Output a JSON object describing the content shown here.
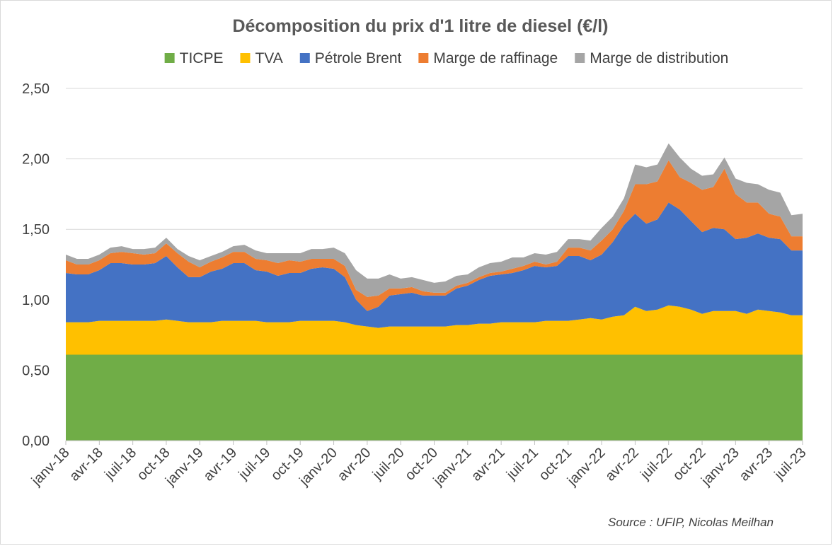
{
  "chart_data": {
    "type": "area",
    "stacked": true,
    "title": "Décomposition du prix d'1 litre de diesel (€/l)",
    "source": "Source : UFIP, Nicolas Meilhan",
    "ylim": [
      0,
      2.5
    ],
    "yticks": [
      "0,00",
      "0,50",
      "1,00",
      "1,50",
      "2,00",
      "2,50"
    ],
    "ytick_values": [
      0,
      0.5,
      1,
      1.5,
      2,
      2.5
    ],
    "grid": "horizontal",
    "legend_position": "top",
    "x_tick_labels": [
      "janv-18",
      "avr-18",
      "juil-18",
      "oct-18",
      "janv-19",
      "avr-19",
      "juil-19",
      "oct-19",
      "janv-20",
      "avr-20",
      "juil-20",
      "oct-20",
      "janv-21",
      "avr-21",
      "juil-21",
      "oct-21",
      "janv-22",
      "avr-22",
      "juil-22",
      "oct-22",
      "janv-23",
      "avr-23",
      "juil-23"
    ],
    "x_tick_index": [
      0,
      3,
      6,
      9,
      12,
      15,
      18,
      21,
      24,
      27,
      30,
      33,
      36,
      39,
      42,
      45,
      48,
      51,
      54,
      57,
      60,
      63,
      66
    ],
    "x": [
      "janv-18",
      "févr-18",
      "mars-18",
      "avr-18",
      "mai-18",
      "juin-18",
      "juil-18",
      "août-18",
      "sept-18",
      "oct-18",
      "nov-18",
      "déc-18",
      "janv-19",
      "févr-19",
      "mars-19",
      "avr-19",
      "mai-19",
      "juin-19",
      "juil-19",
      "août-19",
      "sept-19",
      "oct-19",
      "nov-19",
      "déc-19",
      "janv-20",
      "févr-20",
      "mars-20",
      "avr-20",
      "mai-20",
      "juin-20",
      "juil-20",
      "août-20",
      "sept-20",
      "oct-20",
      "nov-20",
      "déc-20",
      "janv-21",
      "févr-21",
      "mars-21",
      "avr-21",
      "mai-21",
      "juin-21",
      "juil-21",
      "août-21",
      "sept-21",
      "oct-21",
      "nov-21",
      "déc-21",
      "janv-22",
      "févr-22",
      "mars-22",
      "avr-22",
      "mai-22",
      "juin-22",
      "juil-22",
      "août-22",
      "sept-22",
      "oct-22",
      "nov-22",
      "déc-22",
      "janv-23",
      "févr-23",
      "mars-23",
      "avr-23",
      "mai-23",
      "juin-23",
      "juil-23"
    ],
    "series": [
      {
        "name": "TICPE",
        "color": "#70AD47",
        "values": [
          0.61,
          0.61,
          0.61,
          0.61,
          0.61,
          0.61,
          0.61,
          0.61,
          0.61,
          0.61,
          0.61,
          0.61,
          0.61,
          0.61,
          0.61,
          0.61,
          0.61,
          0.61,
          0.61,
          0.61,
          0.61,
          0.61,
          0.61,
          0.61,
          0.61,
          0.61,
          0.61,
          0.61,
          0.61,
          0.61,
          0.61,
          0.61,
          0.61,
          0.61,
          0.61,
          0.61,
          0.61,
          0.61,
          0.61,
          0.61,
          0.61,
          0.61,
          0.61,
          0.61,
          0.61,
          0.61,
          0.61,
          0.61,
          0.61,
          0.61,
          0.61,
          0.61,
          0.61,
          0.61,
          0.61,
          0.61,
          0.61,
          0.61,
          0.61,
          0.61,
          0.61,
          0.61,
          0.61,
          0.61,
          0.61,
          0.61,
          0.61
        ]
      },
      {
        "name": "TVA",
        "color": "#FFC000",
        "values": [
          0.23,
          0.23,
          0.23,
          0.24,
          0.24,
          0.24,
          0.24,
          0.24,
          0.24,
          0.25,
          0.24,
          0.23,
          0.23,
          0.23,
          0.24,
          0.24,
          0.24,
          0.24,
          0.23,
          0.23,
          0.23,
          0.24,
          0.24,
          0.24,
          0.24,
          0.23,
          0.21,
          0.2,
          0.19,
          0.2,
          0.2,
          0.2,
          0.2,
          0.2,
          0.2,
          0.21,
          0.21,
          0.22,
          0.22,
          0.23,
          0.23,
          0.23,
          0.23,
          0.24,
          0.24,
          0.24,
          0.25,
          0.26,
          0.25,
          0.27,
          0.28,
          0.34,
          0.31,
          0.32,
          0.35,
          0.34,
          0.32,
          0.29,
          0.31,
          0.31,
          0.31,
          0.29,
          0.32,
          0.31,
          0.3,
          0.28,
          0.28
        ]
      },
      {
        "name": "Pétrole Brent",
        "color": "#4472C4",
        "values": [
          0.35,
          0.34,
          0.34,
          0.36,
          0.41,
          0.41,
          0.4,
          0.4,
          0.41,
          0.45,
          0.38,
          0.32,
          0.32,
          0.36,
          0.37,
          0.41,
          0.41,
          0.36,
          0.36,
          0.33,
          0.35,
          0.34,
          0.37,
          0.38,
          0.37,
          0.32,
          0.18,
          0.11,
          0.15,
          0.22,
          0.23,
          0.24,
          0.22,
          0.22,
          0.22,
          0.26,
          0.28,
          0.31,
          0.34,
          0.34,
          0.35,
          0.37,
          0.4,
          0.38,
          0.39,
          0.46,
          0.45,
          0.41,
          0.46,
          0.53,
          0.64,
          0.66,
          0.62,
          0.64,
          0.73,
          0.69,
          0.63,
          0.58,
          0.59,
          0.58,
          0.51,
          0.54,
          0.54,
          0.52,
          0.52,
          0.46,
          0.46
        ]
      },
      {
        "name": "Marge de raffinage",
        "color": "#ED7D31",
        "values": [
          0.09,
          0.07,
          0.07,
          0.07,
          0.07,
          0.08,
          0.08,
          0.07,
          0.07,
          0.09,
          0.1,
          0.11,
          0.07,
          0.07,
          0.08,
          0.08,
          0.08,
          0.08,
          0.08,
          0.09,
          0.09,
          0.08,
          0.07,
          0.06,
          0.07,
          0.08,
          0.07,
          0.1,
          0.08,
          0.05,
          0.04,
          0.04,
          0.03,
          0.02,
          0.02,
          0.02,
          0.02,
          0.02,
          0.02,
          0.02,
          0.03,
          0.03,
          0.03,
          0.02,
          0.03,
          0.06,
          0.06,
          0.07,
          0.1,
          0.09,
          0.1,
          0.21,
          0.28,
          0.27,
          0.3,
          0.23,
          0.27,
          0.3,
          0.29,
          0.43,
          0.32,
          0.25,
          0.22,
          0.17,
          0.16,
          0.1,
          0.1
        ]
      },
      {
        "name": "Marge de distribution",
        "color": "#A5A5A5",
        "values": [
          0.04,
          0.04,
          0.04,
          0.04,
          0.04,
          0.04,
          0.03,
          0.04,
          0.04,
          0.04,
          0.03,
          0.04,
          0.05,
          0.04,
          0.04,
          0.04,
          0.05,
          0.06,
          0.05,
          0.07,
          0.05,
          0.06,
          0.07,
          0.07,
          0.08,
          0.09,
          0.14,
          0.13,
          0.12,
          0.1,
          0.07,
          0.07,
          0.08,
          0.07,
          0.08,
          0.07,
          0.06,
          0.07,
          0.07,
          0.07,
          0.08,
          0.06,
          0.06,
          0.07,
          0.07,
          0.06,
          0.06,
          0.07,
          0.09,
          0.09,
          0.09,
          0.14,
          0.12,
          0.12,
          0.12,
          0.14,
          0.1,
          0.1,
          0.09,
          0.08,
          0.11,
          0.14,
          0.13,
          0.17,
          0.17,
          0.15,
          0.16
        ]
      }
    ]
  }
}
